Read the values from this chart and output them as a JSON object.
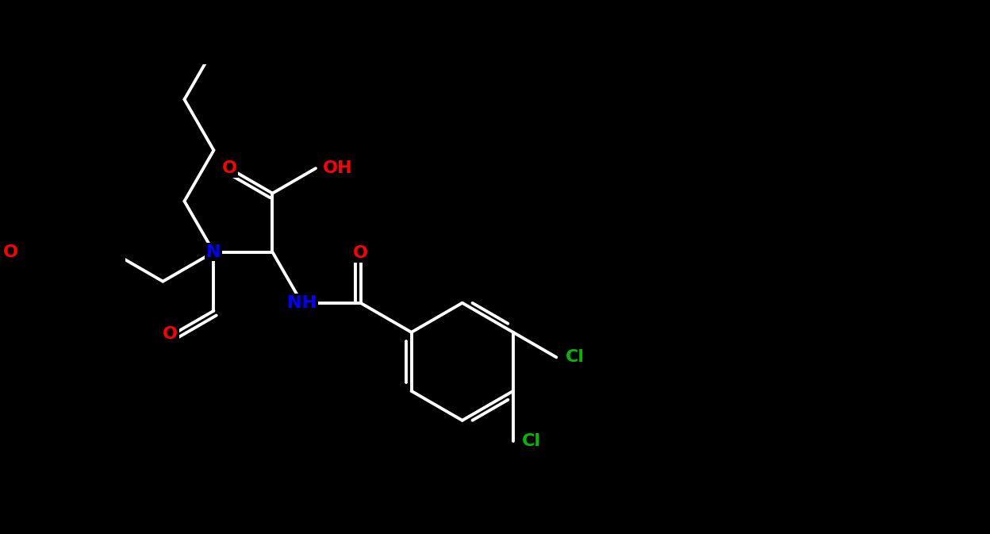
{
  "bg": "#000000",
  "bc": "#ffffff",
  "OC": "#ff0000",
  "NC": "#0000ff",
  "ClC": "#00bb00",
  "bw": 2.8,
  "fs": 16,
  "fig_w": 12.48,
  "fig_h": 6.73,
  "dpi": 100,
  "L": 1.0,
  "xlim": [
    -1.5,
    11.5
  ],
  "ylim": [
    -3.8,
    3.2
  ]
}
